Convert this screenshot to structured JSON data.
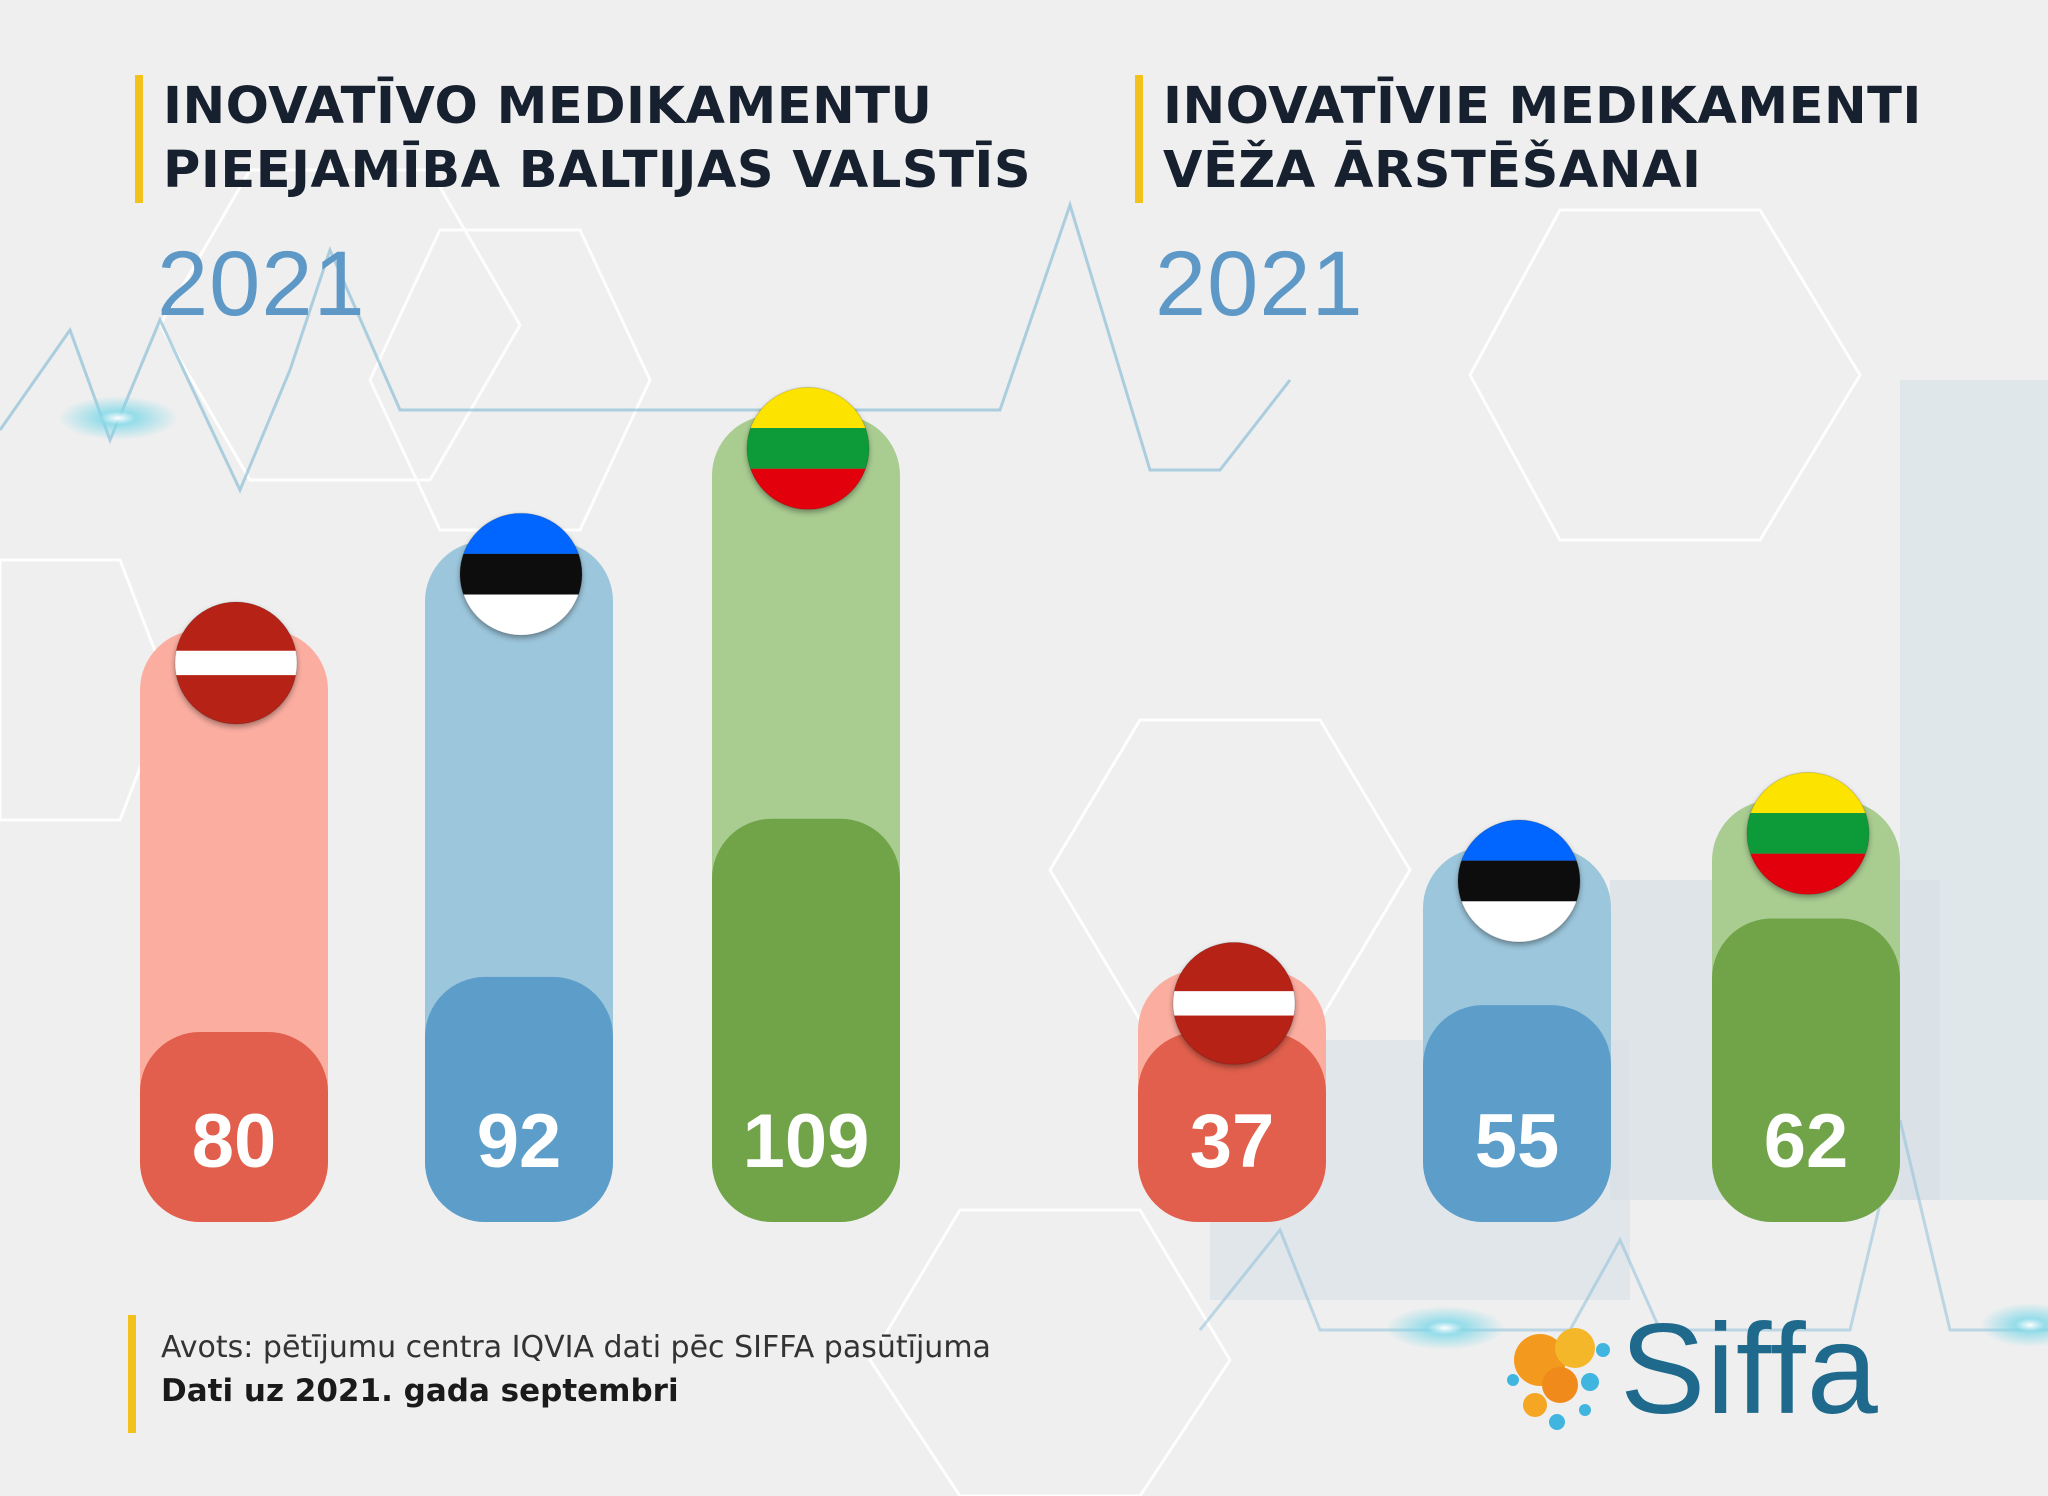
{
  "colors": {
    "latvia_light": "#fbada0",
    "latvia_dark": "#e15f4c",
    "estonia_light": "#9cc6dc",
    "estonia_dark": "#5c9ec9",
    "lithuania_light": "#a9cc91",
    "lithuania_dark": "#71a349",
    "title_accent": "#f3c11b",
    "year": "#5d98c6",
    "logo": "#1f6a8c"
  },
  "footer": {
    "source": "Avots: pētījumu centra IQVIA dati pēc SIFFA pasūtījuma",
    "date": "Dati uz 2021. gada septembri"
  },
  "logo": {
    "text": "Siffa",
    "icon": "molecule-dots-icon"
  },
  "chart_data": [
    {
      "type": "bar",
      "title": "INOVATĪVO MEDIKAMENTU\nPIEEJAMĪBA BALTIJAS VALSTĪS",
      "subtitle": "2021",
      "categories": [
        "Latvija",
        "Igaunija",
        "Lietuva"
      ],
      "category_icons": [
        "latvia-flag-icon",
        "estonia-flag-icon",
        "lithuania-flag-icon"
      ],
      "values": [
        80,
        92,
        109
      ],
      "value_labels": [
        "80",
        "92",
        "109"
      ]
    },
    {
      "type": "bar",
      "title": "INOVATĪVIE MEDIKAMENTI\nVĒŽA ĀRSTĒŠANAI",
      "subtitle": "2021",
      "categories": [
        "Latvija",
        "Igaunija",
        "Lietuva"
      ],
      "category_icons": [
        "latvia-flag-icon",
        "estonia-flag-icon",
        "lithuania-flag-icon"
      ],
      "values": [
        37,
        55,
        62
      ],
      "value_labels": [
        "37",
        "55",
        "62"
      ]
    }
  ]
}
